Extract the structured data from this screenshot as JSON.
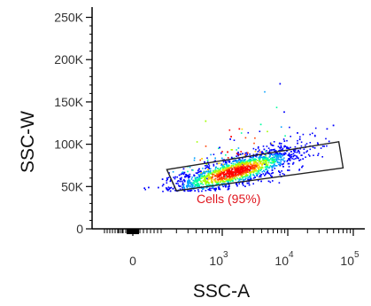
{
  "chart_data": {
    "type": "scatter",
    "subtype": "flow-cytometry density dot plot",
    "xlabel": "SSC-A",
    "ylabel": "SSC-W",
    "x_scale": "biexponential (log above ~10^2)",
    "x_tick_labels": [
      "0",
      "10",
      "10",
      "10"
    ],
    "x_tick_exponents": [
      "",
      "3",
      "4",
      "5"
    ],
    "x_tick_values": [
      0,
      1000,
      10000,
      100000
    ],
    "y_tick_labels": [
      "250K",
      "200K",
      "150K",
      "100K",
      "50K",
      "0"
    ],
    "y_tick_values": [
      250000,
      200000,
      150000,
      100000,
      50000,
      0
    ],
    "ylim": [
      0,
      260000
    ],
    "gate": {
      "name": "Cells",
      "label": "Cells (95%)",
      "percent": 95,
      "shape": "rotated rectangle",
      "vertices_ssc_a_ssc_w": [
        [
          150,
          70000
        ],
        [
          60000,
          103000
        ],
        [
          70000,
          72000
        ],
        [
          200,
          45000
        ]
      ]
    },
    "population": {
      "density_core": {
        "ssc_a": 1500,
        "ssc_w": 68000
      },
      "events_extend_to": {
        "ssc_a": 50000,
        "ssc_w": 180000
      },
      "trend": "SSC-W rises slightly with SSC-A"
    },
    "colormap": [
      "#0000ff",
      "#00a0ff",
      "#00ffa0",
      "#a0ff00",
      "#ffd000",
      "#ff4000",
      "#ff0000"
    ],
    "gate_color": "#222222",
    "label_color": "#e0141c"
  }
}
